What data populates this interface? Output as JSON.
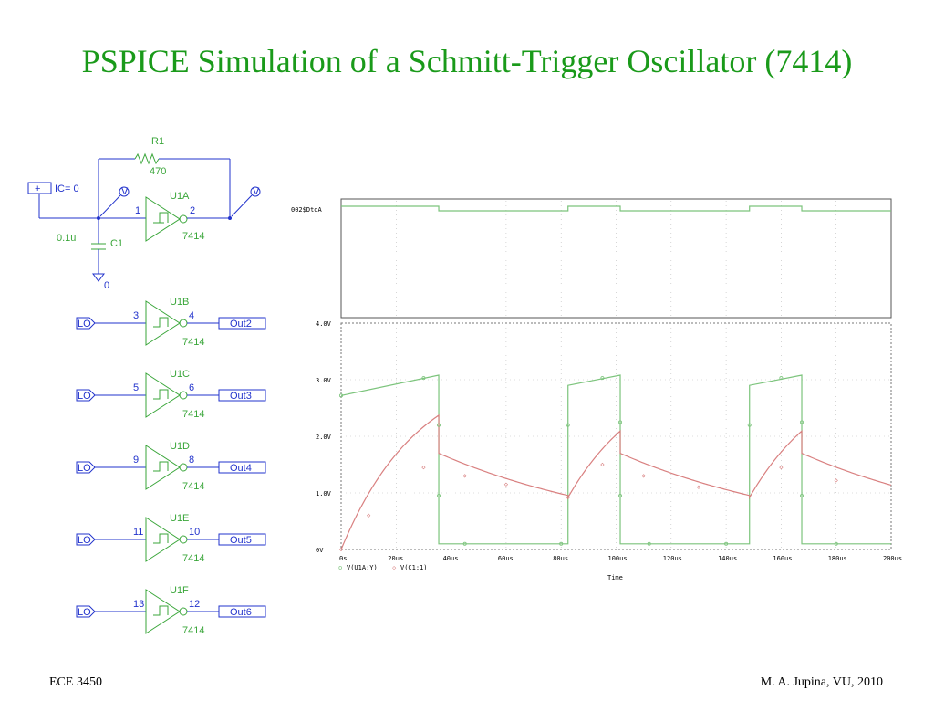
{
  "slide": {
    "title": "PSPICE Simulation of a Schmitt-Trigger Oscillator (7414)",
    "footer_left": "ECE 3450",
    "footer_right": "M. A. Jupina, VU, 2010"
  },
  "colors": {
    "title": "#1a9a1a",
    "schematic_green": "#3aa63a",
    "schematic_blue": "#2233cc",
    "trace_v1": "#7cc47c",
    "trace_v2": "#d98080"
  },
  "schematic": {
    "ic_source": {
      "plus": "+",
      "label": "IC= 0"
    },
    "resistor": {
      "name": "R1",
      "value": "470"
    },
    "capacitor": {
      "name": "C1",
      "value": "0.1u"
    },
    "ground_label": "0",
    "probe_glyph": "V",
    "main_gate": {
      "name": "U1A",
      "in_pin": "1",
      "out_pin": "2",
      "part": "7414"
    },
    "offport_in": "LO",
    "gates": [
      {
        "name": "U1B",
        "in_pin": "3",
        "out_pin": "4",
        "part": "7414",
        "out_label": "Out2"
      },
      {
        "name": "U1C",
        "in_pin": "5",
        "out_pin": "6",
        "part": "7414",
        "out_label": "Out3"
      },
      {
        "name": "U1D",
        "in_pin": "9",
        "out_pin": "8",
        "part": "7414",
        "out_label": "Out4"
      },
      {
        "name": "U1E",
        "in_pin": "11",
        "out_pin": "10",
        "part": "7414",
        "out_label": "Out5"
      },
      {
        "name": "U1F",
        "in_pin": "13",
        "out_pin": "12",
        "part": "7414",
        "out_label": "Out6"
      }
    ]
  },
  "plot": {
    "digital_label": "002$DtoA",
    "x_ticks": [
      "0s",
      "20us",
      "40us",
      "60us",
      "80us",
      "100us",
      "120us",
      "140us",
      "160us",
      "180us",
      "200us"
    ],
    "y_ticks": [
      "0V",
      "1.0V",
      "2.0V",
      "3.0V",
      "4.0V"
    ],
    "x_label": "Time",
    "legend": [
      {
        "marker": "o",
        "text": "V(U1A:Y)"
      },
      {
        "marker": "◇",
        "text": "V(C1:1)"
      }
    ]
  }
}
